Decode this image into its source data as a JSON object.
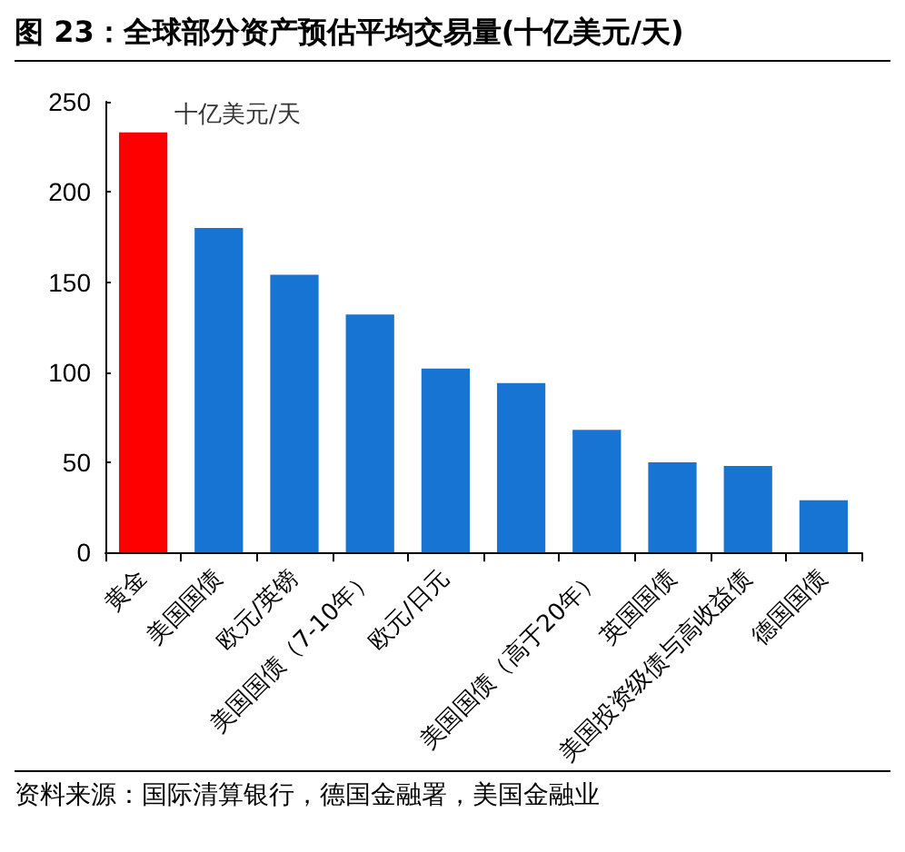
{
  "chart_data": {
    "type": "bar",
    "title": "图 23：全球部分资产预估平均交易量(十亿美元/天)",
    "ylabel": "十亿美元/天",
    "categories": [
      "黄金",
      "美国国债",
      "欧元/英镑",
      "美国国债（7-10年）",
      "欧元/日元",
      null,
      "美国国债（高于20年）",
      "英国国债",
      "美国投资级债与高收益债",
      "德国国债"
    ],
    "values": [
      233,
      180,
      154,
      132,
      102,
      94,
      68,
      50,
      48,
      29
    ],
    "colors": [
      "#ff0000",
      "#1874d2",
      "#1874d2",
      "#1874d2",
      "#1874d2",
      "#1874d2",
      "#1874d2",
      "#1874d2",
      "#1874d2",
      "#1874d2"
    ],
    "ylim": [
      0,
      250
    ],
    "yticks": [
      0,
      50,
      100,
      150,
      200,
      250
    ],
    "grid": false,
    "annotations": [
      "资料来源：国际清算银行，德国金融署，美国金融业"
    ]
  }
}
